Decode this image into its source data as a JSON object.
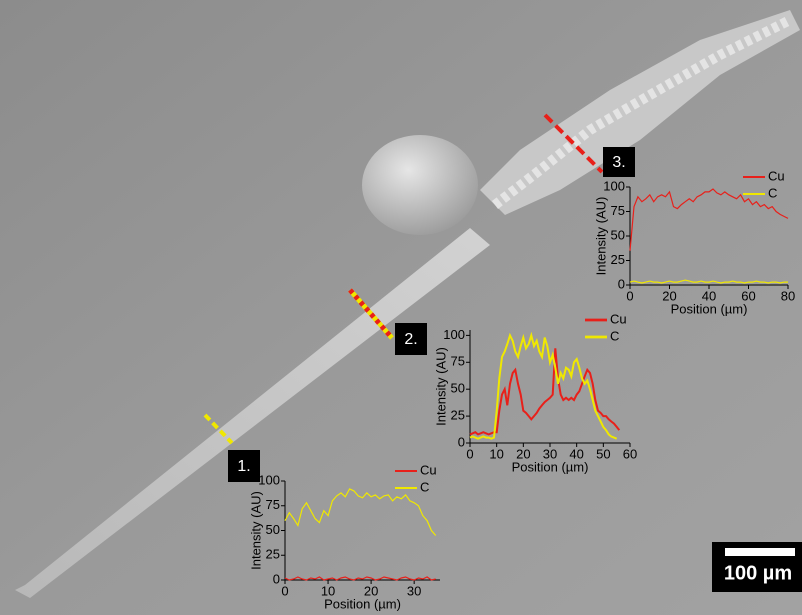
{
  "chart_data": [
    {
      "type": "line",
      "xlabel": "Position (µm)",
      "ylabel": "Intensity (AU)",
      "x": [
        0,
        1,
        2,
        3,
        4,
        5,
        6,
        7,
        8,
        9,
        10,
        11,
        12,
        13,
        14,
        15,
        16,
        17,
        18,
        19,
        20,
        21,
        22,
        23,
        24,
        25,
        26,
        27,
        28,
        29,
        30,
        31,
        32,
        33,
        34,
        35
      ],
      "series": [
        {
          "name": "Cu",
          "color": "#e8201a",
          "values": [
            2,
            0,
            1,
            3,
            1,
            0,
            2,
            1,
            3,
            0,
            1,
            2,
            0,
            2,
            3,
            1,
            0,
            2,
            1,
            3,
            2,
            0,
            1,
            3,
            2,
            1,
            0,
            2,
            3,
            1,
            0,
            2,
            1,
            3,
            0,
            1
          ]
        },
        {
          "name": "C",
          "color": "#f0e800",
          "values": [
            60,
            68,
            62,
            55,
            72,
            78,
            70,
            62,
            58,
            70,
            65,
            80,
            85,
            88,
            84,
            92,
            90,
            85,
            83,
            88,
            84,
            86,
            82,
            85,
            86,
            80,
            84,
            82,
            86,
            80,
            78,
            75,
            65,
            60,
            50,
            45
          ]
        }
      ],
      "xlim": [
        0,
        36
      ],
      "ylim": [
        0,
        100
      ],
      "xticks": [
        0,
        10,
        20,
        30
      ],
      "yticks": [
        0,
        25,
        50,
        75,
        100
      ],
      "legend": "upper right"
    },
    {
      "type": "line",
      "xlabel": "Position (µm)",
      "ylabel": "Intensity (AU)",
      "x": [
        0,
        1,
        2,
        3,
        4,
        5,
        6,
        7,
        8,
        9,
        10,
        11,
        12,
        13,
        14,
        15,
        16,
        17,
        18,
        19,
        20,
        21,
        22,
        23,
        24,
        25,
        26,
        27,
        28,
        29,
        30,
        31,
        32,
        33,
        34,
        35,
        36,
        37,
        38,
        39,
        40,
        41,
        42,
        43,
        44,
        45,
        46,
        47,
        48,
        49,
        50,
        51,
        52,
        53,
        54,
        55,
        56
      ],
      "series": [
        {
          "name": "Cu",
          "color": "#e8201a",
          "values": [
            8,
            9,
            10,
            8,
            9,
            10,
            9,
            8,
            9,
            10,
            10,
            30,
            45,
            50,
            35,
            55,
            65,
            68,
            55,
            45,
            30,
            28,
            25,
            22,
            25,
            28,
            32,
            35,
            38,
            40,
            42,
            45,
            88,
            60,
            45,
            40,
            42,
            40,
            42,
            40,
            45,
            48,
            55,
            62,
            68,
            65,
            55,
            40,
            30,
            28,
            25,
            25,
            22,
            20,
            18,
            15,
            12
          ]
        },
        {
          "name": "C",
          "color": "#f0e800",
          "values": [
            5,
            6,
            5,
            4,
            5,
            6,
            5,
            5,
            4,
            5,
            30,
            60,
            80,
            85,
            92,
            100,
            95,
            85,
            80,
            90,
            98,
            88,
            92,
            100,
            90,
            95,
            85,
            80,
            98,
            90,
            75,
            82,
            70,
            55,
            65,
            60,
            70,
            68,
            62,
            75,
            78,
            70,
            60,
            55,
            58,
            50,
            40,
            30,
            25,
            20,
            15,
            12,
            8,
            6,
            5,
            4,
            null
          ]
        }
      ],
      "xlim": [
        0,
        60
      ],
      "ylim": [
        0,
        105
      ],
      "xticks": [
        0,
        10,
        20,
        30,
        40,
        50,
        60
      ],
      "yticks": [
        0,
        25,
        50,
        75,
        100
      ],
      "legend": "upper right"
    },
    {
      "type": "line",
      "xlabel": "Position (µm)",
      "ylabel": "Intensity (AU)",
      "x": [
        0,
        2,
        4,
        6,
        8,
        10,
        12,
        14,
        16,
        18,
        20,
        22,
        24,
        26,
        28,
        30,
        32,
        34,
        36,
        38,
        40,
        42,
        44,
        46,
        48,
        50,
        52,
        54,
        56,
        58,
        60,
        62,
        64,
        66,
        68,
        70,
        72,
        74,
        76,
        78,
        80
      ],
      "series": [
        {
          "name": "Cu",
          "color": "#e8201a",
          "values": [
            35,
            80,
            90,
            85,
            88,
            92,
            85,
            90,
            92,
            90,
            95,
            80,
            78,
            82,
            85,
            88,
            85,
            90,
            92,
            95,
            95,
            98,
            94,
            92,
            95,
            92,
            90,
            88,
            92,
            85,
            88,
            82,
            85,
            80,
            82,
            78,
            80,
            75,
            72,
            70,
            68
          ]
        },
        {
          "name": "C",
          "color": "#f0e800",
          "values": [
            3,
            4,
            3,
            2,
            3,
            4,
            3,
            3,
            2,
            3,
            4,
            3,
            3,
            4,
            5,
            4,
            3,
            3,
            4,
            3,
            3,
            4,
            3,
            2,
            3,
            3,
            4,
            3,
            3,
            2,
            3,
            3,
            4,
            3,
            3,
            2,
            3,
            3,
            2,
            3,
            3
          ]
        }
      ],
      "xlim": [
        0,
        80
      ],
      "ylim": [
        0,
        100
      ],
      "xticks": [
        0,
        20,
        40,
        60,
        80
      ],
      "yticks": [
        0,
        25,
        50,
        75,
        100
      ],
      "legend": "upper right"
    }
  ],
  "markers": [
    "1.",
    "2.",
    "3."
  ],
  "scale_bar": "100 µm"
}
